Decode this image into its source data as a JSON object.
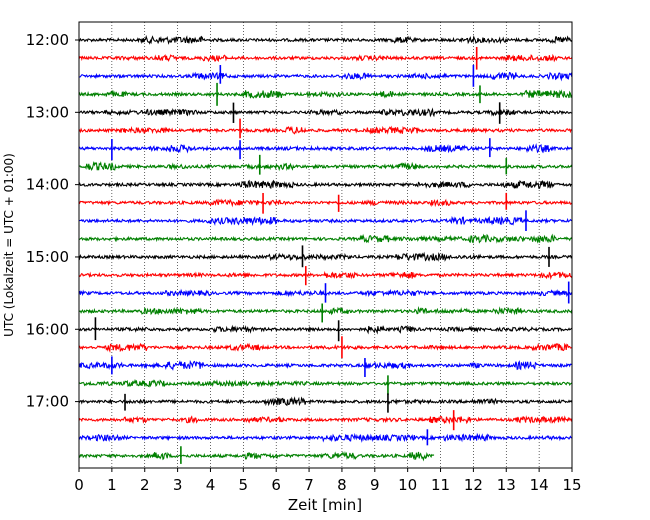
{
  "chart_data": {
    "type": "line",
    "title": "",
    "xlabel": "Zeit  [min]",
    "ylabel": "UTC (Lokalzeit = UTC + 01:00)",
    "xlim": [
      0,
      15
    ],
    "x_ticks": [
      "0",
      "1",
      "2",
      "3",
      "4",
      "5",
      "6",
      "7",
      "8",
      "9",
      "10",
      "11",
      "12",
      "13",
      "14",
      "15"
    ],
    "y_tick_labels": [
      "12:00",
      "13:00",
      "14:00",
      "15:00",
      "16:00",
      "17:00"
    ],
    "rows_per_hour": 4,
    "row_interval_minutes": 15,
    "grid": "vertical dotted at each minute",
    "series_colors": [
      "#000000",
      "#ff0000",
      "#0000ff",
      "#008000"
    ],
    "series": [
      {
        "start": "12:00",
        "spikes": []
      },
      {
        "start": "12:15",
        "spikes": [
          12.1
        ]
      },
      {
        "start": "12:30",
        "spikes": [
          4.3,
          12.0
        ]
      },
      {
        "start": "12:45",
        "spikes": [
          4.2,
          12.2
        ]
      },
      {
        "start": "13:00",
        "spikes": [
          4.7,
          12.8
        ]
      },
      {
        "start": "13:15",
        "spikes": [
          4.9
        ]
      },
      {
        "start": "13:30",
        "spikes": [
          1.0,
          4.9,
          12.5
        ]
      },
      {
        "start": "13:45",
        "spikes": [
          5.5,
          13.0
        ]
      },
      {
        "start": "14:00",
        "spikes": []
      },
      {
        "start": "14:15",
        "spikes": [
          5.6,
          7.9,
          13.0
        ]
      },
      {
        "start": "14:30",
        "spikes": [
          13.6
        ]
      },
      {
        "start": "14:45",
        "spikes": []
      },
      {
        "start": "15:00",
        "spikes": [
          6.8,
          14.3
        ]
      },
      {
        "start": "15:15",
        "spikes": [
          6.9
        ]
      },
      {
        "start": "15:30",
        "spikes": [
          7.5,
          14.9
        ]
      },
      {
        "start": "15:45",
        "spikes": [
          7.4
        ]
      },
      {
        "start": "16:00",
        "spikes": [
          0.5,
          7.9
        ]
      },
      {
        "start": "16:15",
        "spikes": [
          8.0
        ]
      },
      {
        "start": "16:30",
        "spikes": [
          1.0,
          8.7
        ]
      },
      {
        "start": "16:45",
        "spikes": [
          9.4
        ]
      },
      {
        "start": "17:00",
        "spikes": [
          1.4,
          9.4
        ]
      },
      {
        "start": "17:15",
        "spikes": [
          11.4
        ]
      },
      {
        "start": "17:30",
        "spikes": [
          10.6
        ]
      },
      {
        "start": "17:45",
        "spikes": [
          3.1
        ],
        "end_minute": 10.8
      }
    ]
  }
}
